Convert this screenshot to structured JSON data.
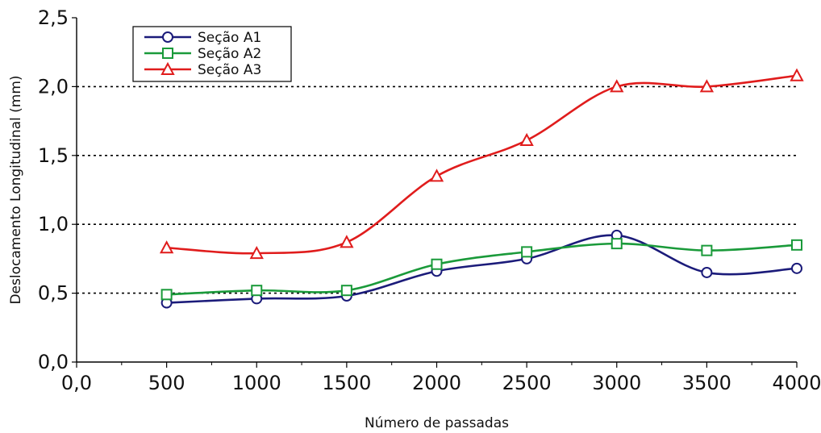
{
  "chart_data": {
    "type": "line",
    "xlabel": "Número de passadas",
    "ylabel": "Deslocamento Longitudinal (mm)",
    "xlim": [
      0,
      4000
    ],
    "ylim": [
      0,
      2.5
    ],
    "x_ticks": [
      "0,0",
      "500",
      "1000",
      "1500",
      "2000",
      "2500",
      "3000",
      "3500",
      "4000"
    ],
    "y_ticks": [
      "0,0",
      "0,5",
      "1,0",
      "1,5",
      "2,0",
      "2,5"
    ],
    "grid": "horizontal dotted",
    "legend_position": "top-left",
    "x": [
      500,
      1000,
      1500,
      2000,
      2500,
      3000,
      3500,
      4000
    ],
    "series": [
      {
        "name": "Seção A1",
        "color": "#1b1b7a",
        "marker": "circle",
        "values": [
          0.43,
          0.46,
          0.48,
          0.66,
          0.75,
          0.92,
          0.65,
          0.68
        ]
      },
      {
        "name": "Seção A2",
        "color": "#1a9a3a",
        "marker": "square",
        "values": [
          0.49,
          0.52,
          0.52,
          0.71,
          0.8,
          0.86,
          0.81,
          0.85
        ]
      },
      {
        "name": "Seção A3",
        "color": "#e01c1c",
        "marker": "triangle",
        "values": [
          0.83,
          0.79,
          0.87,
          1.35,
          1.61,
          2.0,
          2.0,
          2.08
        ]
      }
    ]
  }
}
